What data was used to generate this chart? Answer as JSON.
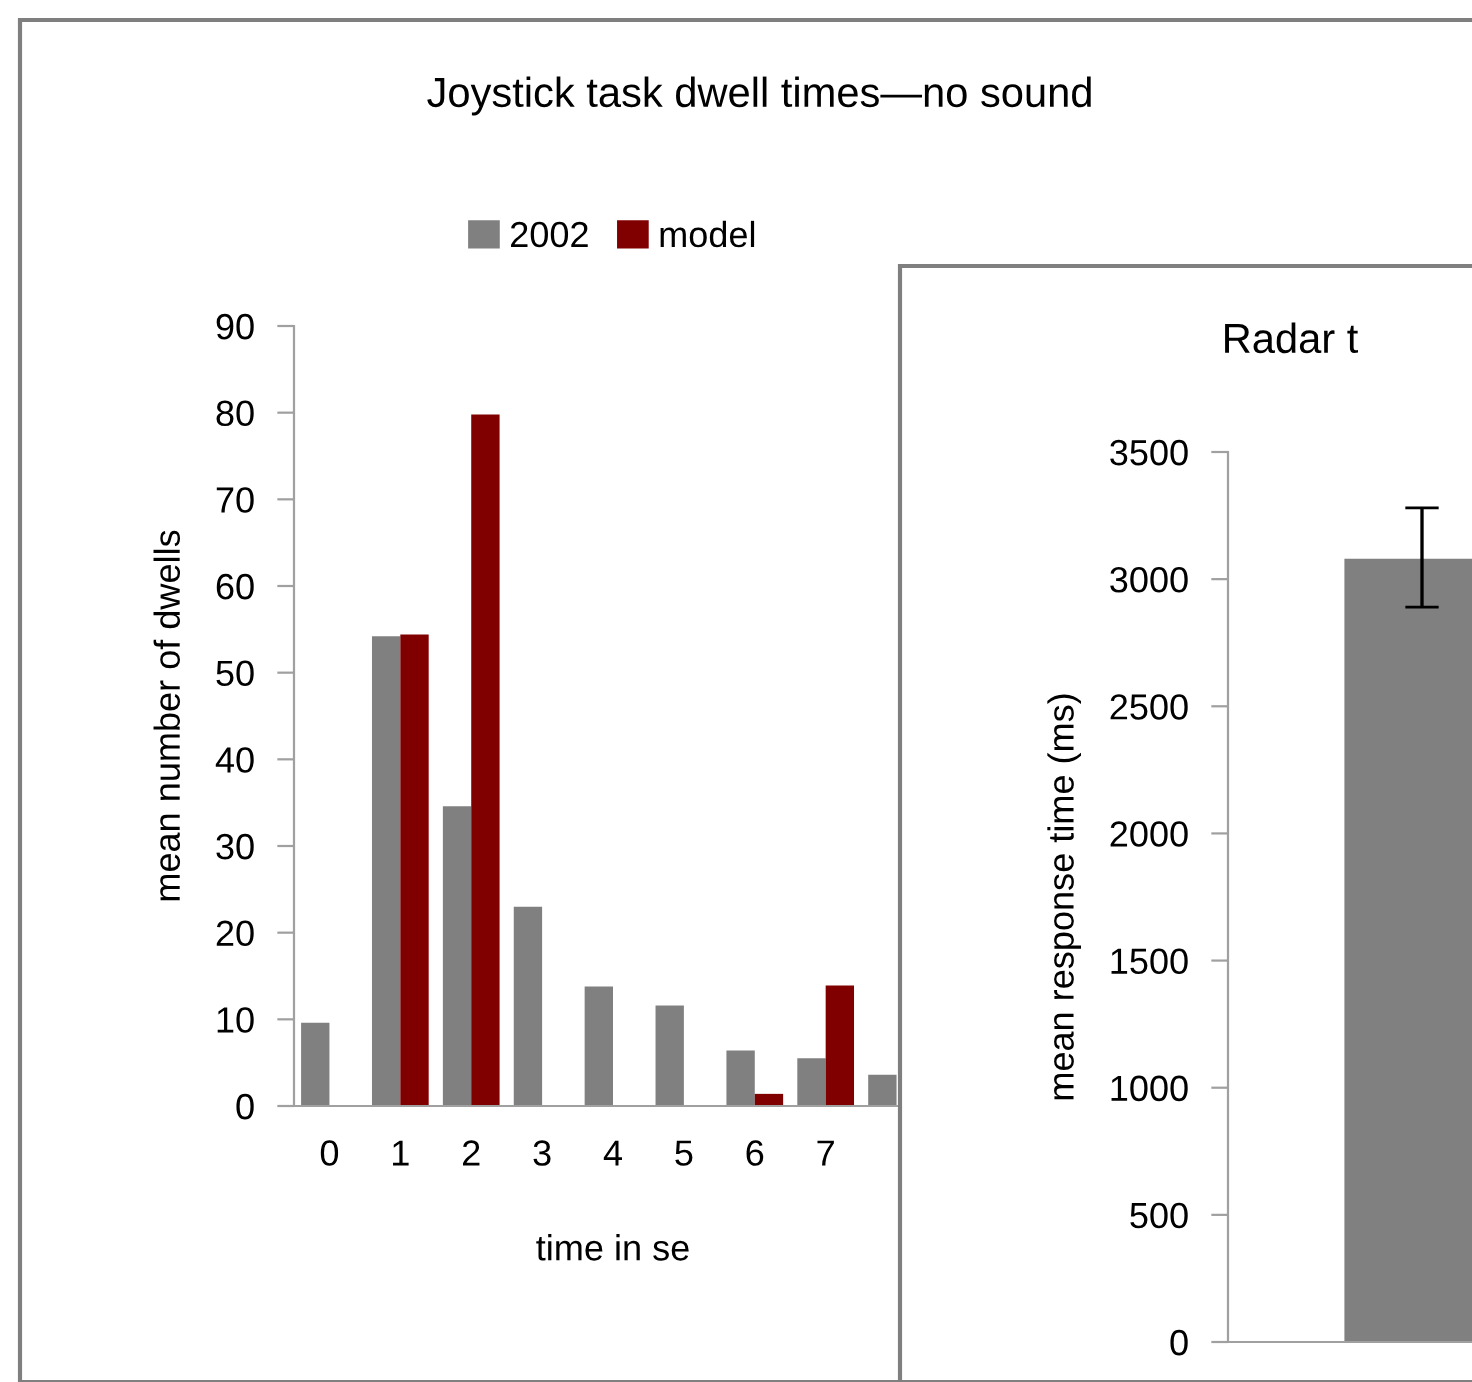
{
  "chart_data": [
    {
      "type": "bar",
      "title": "Joystick task dwell times—no sound",
      "xlabel": "time in se",
      "ylabel": "mean number of dwells",
      "categories": [
        "0",
        "1",
        "2",
        "3",
        "4",
        "5",
        "6",
        "7",
        null
      ],
      "series": [
        {
          "name": "2002",
          "color": "#808080",
          "values": [
            9.6,
            54.2,
            34.6,
            23,
            13.8,
            11.6,
            6.4,
            5.5,
            3.6
          ]
        },
        {
          "name": "model",
          "color": "#800000",
          "values": [
            0,
            54.4,
            79.8,
            0,
            0,
            0,
            1.4,
            13.9,
            null
          ]
        }
      ],
      "ylim": [
        0,
        90
      ],
      "yticks": [
        0,
        10,
        20,
        30,
        40,
        50,
        60,
        70,
        80,
        90
      ],
      "legend": "top",
      "grid": false
    },
    {
      "type": "bar",
      "title": "Radar t",
      "ylabel": "mean response time (ms)",
      "categories": [
        null
      ],
      "series": [
        {
          "color": "#808080",
          "values": [
            3080
          ],
          "errors": [
            [
              2890,
              3280
            ]
          ]
        }
      ],
      "ylim": [
        0,
        3500
      ],
      "yticks": [
        0,
        500,
        1000,
        1500,
        2000,
        2500,
        3000,
        3500
      ],
      "grid": false
    }
  ]
}
